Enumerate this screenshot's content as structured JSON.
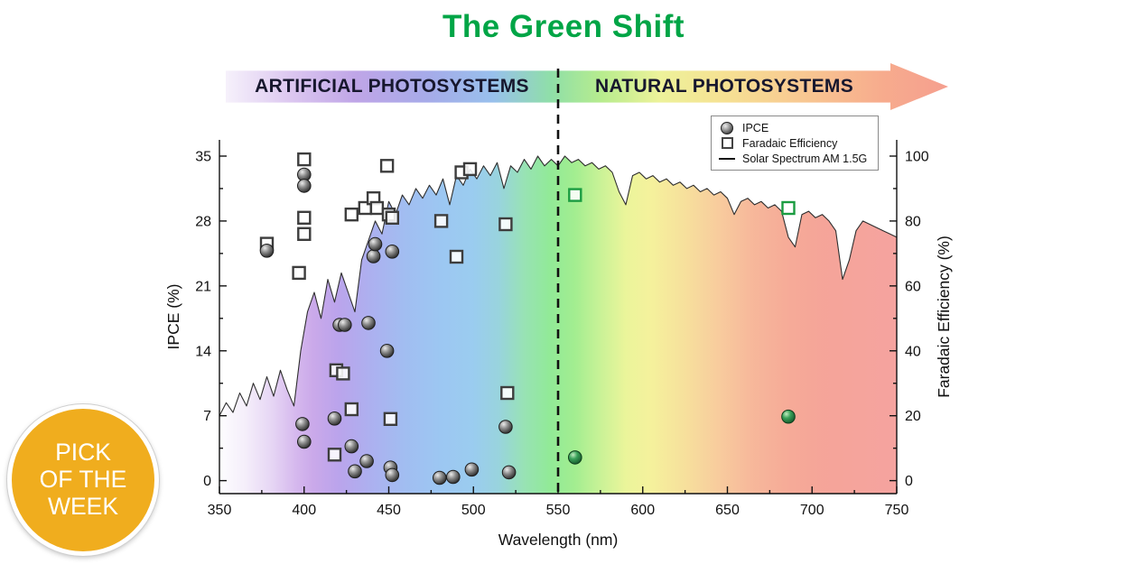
{
  "page": {
    "title": "The Green Shift",
    "title_color": "#00A546"
  },
  "banner": {
    "left_label": "ARTIFICIAL PHOTOSYSTEMS",
    "right_label": "NATURAL PHOTOSYSTEMS"
  },
  "badge": {
    "lines": [
      "PICK",
      "OF THE",
      "WEEK"
    ],
    "color": "#F0AD1E"
  },
  "legend": {
    "items": [
      {
        "label": "IPCE",
        "marker": "circle"
      },
      {
        "label": "Faradaic Efficiency",
        "marker": "square"
      },
      {
        "label": "Solar Spectrum AM 1.5G",
        "marker": "line"
      }
    ]
  },
  "chart_data": {
    "type": "scatter",
    "title": "The Green Shift",
    "xlabel": "Wavelength (nm)",
    "ylabel_left": "IPCE (%)",
    "ylabel_right": "Faradaic Efficiency (%)",
    "xlim": [
      350,
      750
    ],
    "xticks": [
      350,
      400,
      450,
      500,
      550,
      600,
      650,
      700,
      750
    ],
    "yticks_left": [
      0,
      7,
      14,
      21,
      28,
      35
    ],
    "yticks_right": [
      0,
      20,
      40,
      60,
      80,
      100
    ],
    "ylim_left": [
      0,
      35
    ],
    "ylim_right": [
      0,
      100
    ],
    "divider_nm": 550,
    "grid": false,
    "legend_position": "top-right",
    "series": [
      {
        "name": "Faradaic Efficiency (artificial)",
        "axis": "right",
        "marker": "square",
        "color": "gray",
        "points": [
          [
            378,
            73
          ],
          [
            397,
            64
          ],
          [
            400,
            99
          ],
          [
            400,
            81
          ],
          [
            400,
            76
          ],
          [
            418,
            8
          ],
          [
            419,
            34
          ],
          [
            423,
            33
          ],
          [
            428,
            22
          ],
          [
            428,
            82
          ],
          [
            436,
            84
          ],
          [
            441,
            87
          ],
          [
            443,
            84
          ],
          [
            449,
            97
          ],
          [
            450,
            82
          ],
          [
            452,
            81
          ],
          [
            451,
            19
          ],
          [
            481,
            80
          ],
          [
            490,
            69
          ],
          [
            493,
            95
          ],
          [
            498,
            96
          ],
          [
            519,
            79
          ],
          [
            520,
            27
          ]
        ]
      },
      {
        "name": "Faradaic Efficiency (natural)",
        "axis": "right",
        "marker": "square",
        "color": "green",
        "points": [
          [
            560,
            88
          ],
          [
            686,
            84
          ]
        ]
      },
      {
        "name": "IPCE (artificial)",
        "axis": "left",
        "marker": "sphere",
        "color": "gray",
        "points": [
          [
            378,
            24.8
          ],
          [
            399,
            6.1
          ],
          [
            400,
            33
          ],
          [
            400,
            31.8
          ],
          [
            400,
            4.2
          ],
          [
            418,
            6.7
          ],
          [
            421,
            16.8
          ],
          [
            424,
            16.8
          ],
          [
            428,
            3.7
          ],
          [
            430,
            1
          ],
          [
            437,
            2.1
          ],
          [
            438,
            17
          ],
          [
            441,
            24.2
          ],
          [
            442,
            25.5
          ],
          [
            449,
            14
          ],
          [
            451,
            1.4
          ],
          [
            452,
            0.6
          ],
          [
            452,
            24.7
          ],
          [
            480,
            0.3
          ],
          [
            488,
            0.4
          ],
          [
            499,
            1.2
          ],
          [
            519,
            5.8
          ],
          [
            521,
            0.9
          ]
        ]
      },
      {
        "name": "IPCE (natural)",
        "axis": "left",
        "marker": "sphere",
        "color": "green",
        "points": [
          [
            560,
            2.5
          ],
          [
            686,
            6.9
          ]
        ]
      },
      {
        "name": "Solar Spectrum AM 1.5G",
        "axis": "right",
        "marker": "line",
        "color": "black",
        "x_start": 350,
        "x_step": 4,
        "values": [
          20,
          24,
          21,
          27,
          23,
          30,
          25,
          32,
          26,
          34,
          28,
          23,
          40,
          52,
          58,
          50,
          62,
          55,
          64,
          58,
          52,
          68,
          74,
          80,
          76,
          86,
          82,
          88,
          85,
          90,
          87,
          91,
          88,
          93,
          85,
          94,
          91,
          96,
          93,
          97,
          94,
          98,
          90,
          97,
          95,
          99,
          96,
          100,
          97,
          99,
          97,
          100,
          98,
          99,
          97,
          98,
          96,
          97,
          95,
          89,
          85,
          94,
          95,
          93,
          94,
          92,
          93,
          91,
          92,
          90,
          91,
          89,
          90,
          88,
          89,
          87,
          82,
          86,
          87,
          85,
          86,
          84,
          85,
          83,
          75,
          72,
          82,
          83,
          81,
          82,
          80,
          77,
          62,
          68,
          77,
          80,
          79,
          78,
          77,
          76,
          75
        ]
      }
    ],
    "spectrum_gradient": [
      [
        350,
        "#fdfdff"
      ],
      [
        365,
        "#f4edfa"
      ],
      [
        380,
        "#e5d4f4"
      ],
      [
        395,
        "#d2b2ec"
      ],
      [
        405,
        "#c6a2e8"
      ],
      [
        420,
        "#b59cea"
      ],
      [
        440,
        "#a5aaee"
      ],
      [
        460,
        "#99b8f0"
      ],
      [
        480,
        "#94c2f1"
      ],
      [
        500,
        "#92c8ee"
      ],
      [
        515,
        "#90d0da"
      ],
      [
        530,
        "#8fe0ae"
      ],
      [
        545,
        "#88e88e"
      ],
      [
        560,
        "#9bec87"
      ],
      [
        575,
        "#c5f18e"
      ],
      [
        590,
        "#e9f492"
      ],
      [
        605,
        "#f4f094"
      ],
      [
        625,
        "#f6dd94"
      ],
      [
        645,
        "#f7c795"
      ],
      [
        665,
        "#f6b192"
      ],
      [
        685,
        "#f5a48f"
      ],
      [
        705,
        "#f49d90"
      ],
      [
        750,
        "#f49b97"
      ]
    ]
  }
}
